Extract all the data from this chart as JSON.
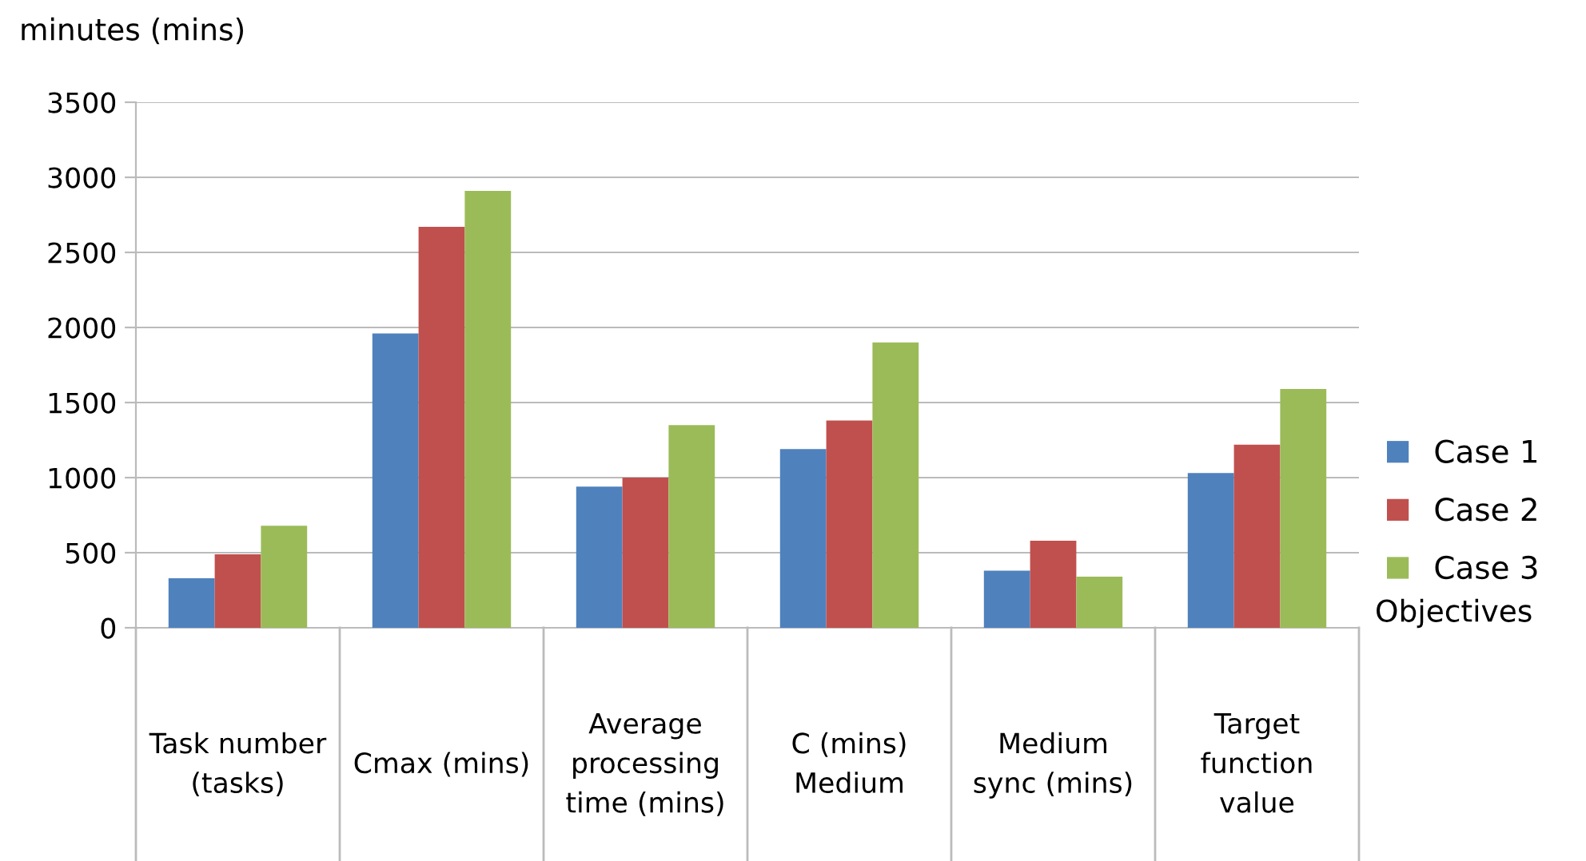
{
  "chart_data": {
    "type": "bar",
    "ylabel": "minutes (mins)",
    "xlabel": "Objectives",
    "categories": [
      "Task number\n(tasks)",
      "Cmax (mins)",
      "Average\nprocessing\ntime (mins)",
      "C (mins)\nMedium",
      "Medium\nsync (mins)",
      "Target\nfunction\nvalue"
    ],
    "series": [
      {
        "name": "Case 1",
        "color": "#4f81bd",
        "values": [
          330,
          1960,
          940,
          1190,
          380,
          1030
        ]
      },
      {
        "name": "Case 2",
        "color": "#c0504d",
        "values": [
          490,
          2670,
          1000,
          1380,
          580,
          1220
        ]
      },
      {
        "name": "Case 3",
        "color": "#9bbb59",
        "values": [
          680,
          2910,
          1350,
          1900,
          340,
          1590
        ]
      }
    ],
    "ylim": [
      0,
      3500
    ],
    "yticks": [
      0,
      500,
      1000,
      1500,
      2000,
      2500,
      3000,
      3500
    ],
    "grid": "y",
    "legend": "right"
  }
}
